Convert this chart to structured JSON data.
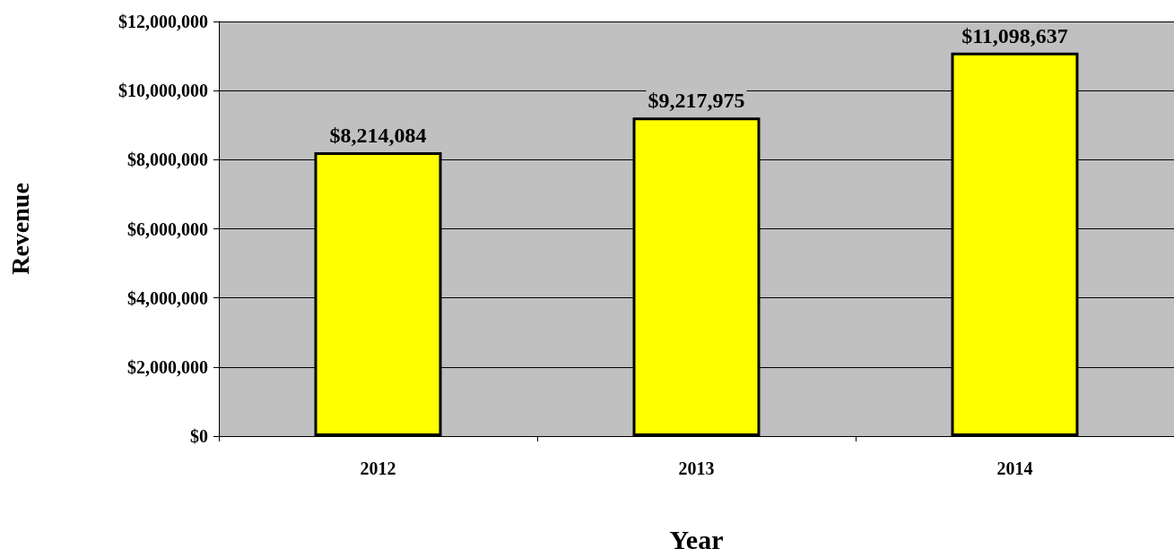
{
  "chart_data": {
    "type": "bar",
    "xlabel": "Year",
    "ylabel": "Revenue",
    "categories": [
      "2012",
      "2013",
      "2014"
    ],
    "values": [
      8214084,
      9217975,
      11098637
    ],
    "value_labels": [
      "$8,214,084",
      "$9,217,975",
      "$11,098,637"
    ],
    "color": "#ffff00",
    "ylim": [
      0,
      12000000
    ],
    "yticks": [
      {
        "value": 0,
        "label": "$0"
      },
      {
        "value": 2000000,
        "label": "$2,000,000"
      },
      {
        "value": 4000000,
        "label": "$4,000,000"
      },
      {
        "value": 6000000,
        "label": "$6,000,000"
      },
      {
        "value": 8000000,
        "label": "$8,000,000"
      },
      {
        "value": 10000000,
        "label": "$10,000,000"
      },
      {
        "value": 12000000,
        "label": "$12,000,000"
      }
    ],
    "grid": "y"
  }
}
